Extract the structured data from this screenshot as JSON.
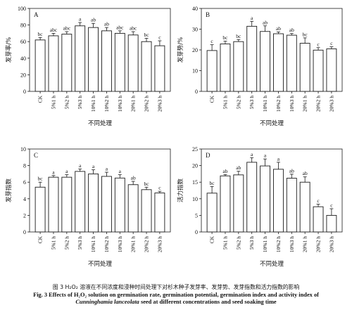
{
  "chart_data": [
    {
      "panel_letter": "A",
      "type": "bar",
      "ylabel": "发芽率/%",
      "xlabel": "不同处理",
      "ylim": [
        0,
        100
      ],
      "yticks": [
        0,
        20,
        40,
        60,
        80,
        100
      ],
      "categories": [
        "CK",
        "5%1 h",
        "5%2 h",
        "5%3 h",
        "10%1 h",
        "10%2 h",
        "10%3 h",
        "20%1 h",
        "20%2 h",
        "20%3 h"
      ],
      "values": [
        62,
        67,
        69,
        79,
        77,
        73,
        70,
        68,
        60,
        55
      ],
      "errors": [
        3,
        3,
        3,
        4,
        5,
        4,
        3,
        4,
        4,
        6
      ],
      "labels": [
        "bc",
        "abc",
        "abc",
        "a",
        "ab",
        "ab",
        "abc",
        "abc",
        "bc",
        "c"
      ]
    },
    {
      "panel_letter": "B",
      "type": "bar",
      "ylabel": "发芽势/%",
      "xlabel": "不同处理",
      "ylim": [
        0,
        40
      ],
      "yticks": [
        0,
        10,
        20,
        30,
        40
      ],
      "categories": [
        "CK",
        "5%1 h",
        "5%2 h",
        "5%3 h",
        "10%1 h",
        "10%2 h",
        "10%3 h",
        "20%1 h",
        "20%2 h",
        "20%3 h"
      ],
      "values": [
        19.7,
        22.9,
        24.0,
        31.4,
        28.9,
        27.8,
        27.1,
        23.2,
        19.9,
        20.5
      ],
      "errors": [
        2.8,
        1.3,
        1.0,
        2.4,
        2.7,
        0.9,
        0.8,
        2.6,
        1.2,
        1.0
      ],
      "labels": [
        "c",
        "bc",
        "bc",
        "a",
        "ab",
        "ab",
        "ab",
        "bc",
        "c",
        "c"
      ]
    },
    {
      "panel_letter": "C",
      "type": "bar",
      "ylabel": "发芽指数",
      "xlabel": "不同处理",
      "ylim": [
        0,
        10
      ],
      "yticks": [
        0,
        2,
        4,
        6,
        8,
        10
      ],
      "categories": [
        "CK",
        "5%1 h",
        "5%2 h",
        "5%3 h",
        "10%1 h",
        "10%2 h",
        "10%3 h",
        "20%1 h",
        "20%2 h",
        "20%3 h"
      ],
      "values": [
        5.4,
        6.6,
        6.6,
        7.3,
        7.0,
        6.7,
        6.5,
        5.7,
        5.1,
        4.7
      ],
      "errors": [
        0.6,
        0.2,
        0.3,
        0.3,
        0.5,
        0.5,
        0.4,
        0.4,
        0.3,
        0.2
      ],
      "labels": [
        "bc",
        "a",
        "a",
        "a",
        "a",
        "a",
        "a",
        "ab",
        "bc",
        "c"
      ]
    },
    {
      "panel_letter": "D",
      "type": "bar",
      "ylabel": "活力指数",
      "xlabel": "不同处理",
      "ylim": [
        0,
        25
      ],
      "yticks": [
        0,
        5,
        10,
        15,
        20,
        25
      ],
      "categories": [
        "CK",
        "5%1 h",
        "5%2 h",
        "5%3 h",
        "10%1 h",
        "10%2 h",
        "10%3 h",
        "20%1 h",
        "20%2 h",
        "20%3 h"
      ],
      "values": [
        11.7,
        16.9,
        17.2,
        21.0,
        19.9,
        18.9,
        16.2,
        15.0,
        7.6,
        5.0
      ],
      "errors": [
        2.0,
        0.4,
        1.1,
        1.4,
        2.1,
        2.1,
        1.2,
        1.6,
        0.8,
        2.0
      ],
      "labels": [
        "bc",
        "ab",
        "ab",
        "a",
        "a",
        "a",
        "ab",
        "ab",
        "c",
        "c"
      ]
    }
  ],
  "caption": {
    "cn": "图 3   H₂O₂ 溶液在不同浓度和浸种时间处理下对杉木种子发芽率、发芽势、发芽指数和活力指数的影响",
    "en_line1": "Fig. 3   Effects of H₂O₂ solution on germination rate, germination potential, germination index and activity index of",
    "species": "Cunninghamia lanceolata",
    "en_line2_rest": " seed at different concentrations and seed soaking time"
  }
}
